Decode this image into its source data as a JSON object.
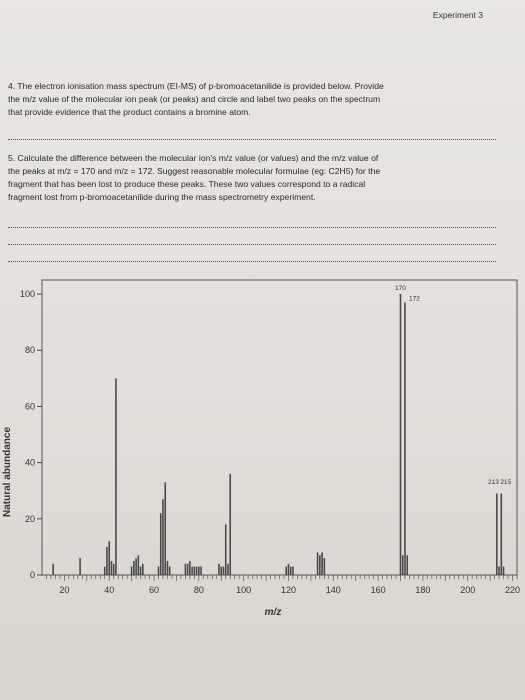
{
  "header": {
    "experiment_label": "Experiment 3"
  },
  "question4": {
    "line1": "4. The electron ionisation mass spectrum (EI-MS) of p-bromoacetanilide is provided below.  Provide",
    "line2": "the m/z value of the molecular ion peak (or peaks) and circle and label two peaks on the spectrum",
    "line3": "that provide evidence that the product contains a bromine atom."
  },
  "question5": {
    "line1": "5. Calculate the difference between the molecular ion's m/z value (or values) and the m/z value of",
    "line2": "the peaks at m/z = 170 and m/z = 172. Suggest reasonable molecular formulae (eg: C2H5) for the",
    "line3": "fragment that has been lost to produce these peaks.  These two values correspond to a radical",
    "line4": "fragment lost from p-bromoacetanilide during the mass spectrometry experiment."
  },
  "chart_data": {
    "type": "bar",
    "title": "",
    "xlabel": "m/z",
    "ylabel": "Natural abundance",
    "xlim": [
      10,
      222
    ],
    "ylim": [
      0,
      105
    ],
    "xticks": [
      20,
      40,
      60,
      80,
      100,
      120,
      140,
      160,
      180,
      200,
      220
    ],
    "yticks": [
      0,
      20,
      40,
      60,
      80,
      100
    ],
    "peak_labels": [
      {
        "text": "170",
        "x": 170,
        "y": 100
      },
      {
        "text": "172",
        "x": 172,
        "y": 97
      },
      {
        "text": "213",
        "x": 213,
        "y": 31
      },
      {
        "text": "215",
        "x": 215,
        "y": 31
      }
    ],
    "x": [
      15,
      27,
      38,
      39,
      40,
      41,
      42,
      43,
      50,
      51,
      52,
      53,
      54,
      55,
      62,
      63,
      64,
      65,
      66,
      67,
      74,
      75,
      76,
      77,
      78,
      79,
      80,
      81,
      89,
      90,
      91,
      92,
      93,
      94,
      119,
      120,
      121,
      122,
      133,
      134,
      135,
      136,
      170,
      171,
      172,
      173,
      213,
      214,
      215,
      216
    ],
    "values": [
      4,
      6,
      3,
      10,
      12,
      5,
      4,
      70,
      3,
      5,
      6,
      7,
      3,
      4,
      3,
      22,
      27,
      33,
      5,
      3,
      4,
      4,
      5,
      3,
      3,
      3,
      3,
      3,
      4,
      3,
      3,
      18,
      4,
      36,
      3,
      4,
      3,
      3,
      8,
      7,
      8,
      6,
      100,
      7,
      97,
      7,
      29,
      3,
      29,
      3
    ]
  }
}
